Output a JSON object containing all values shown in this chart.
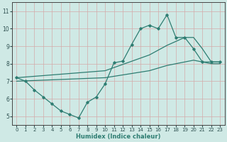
{
  "xlabel": "Humidex (Indice chaleur)",
  "ylabel": "",
  "xlim": [
    -0.5,
    23.5
  ],
  "ylim": [
    4.5,
    11.5
  ],
  "yticks": [
    5,
    6,
    7,
    8,
    9,
    10,
    11
  ],
  "xticks": [
    0,
    1,
    2,
    3,
    4,
    5,
    6,
    7,
    8,
    9,
    10,
    11,
    12,
    13,
    14,
    15,
    16,
    17,
    18,
    19,
    20,
    21,
    22,
    23
  ],
  "bg_color": "#cfe9e5",
  "grid_color": "#d4aaaa",
  "line_color": "#2e7d72",
  "line1_x": [
    0,
    1,
    2,
    3,
    4,
    5,
    6,
    7,
    8,
    9,
    10,
    11,
    12,
    13,
    14,
    15,
    16,
    17,
    18,
    19,
    20,
    21,
    22,
    23
  ],
  "line1_y": [
    7.2,
    7.0,
    6.5,
    6.1,
    5.7,
    5.3,
    5.1,
    4.9,
    5.8,
    6.1,
    6.85,
    8.05,
    8.15,
    9.1,
    10.0,
    10.2,
    10.0,
    10.8,
    9.5,
    9.5,
    8.85,
    8.1,
    8.1,
    8.1
  ],
  "line2_x": [
    0,
    10,
    15,
    17,
    19,
    20,
    21,
    22,
    23
  ],
  "line2_y": [
    7.2,
    7.6,
    8.5,
    9.05,
    9.5,
    9.5,
    8.85,
    8.1,
    8.1
  ],
  "line3_x": [
    0,
    10,
    15,
    17,
    19,
    20,
    22,
    23
  ],
  "line3_y": [
    7.0,
    7.2,
    7.6,
    7.9,
    8.1,
    8.2,
    8.0,
    8.0
  ]
}
